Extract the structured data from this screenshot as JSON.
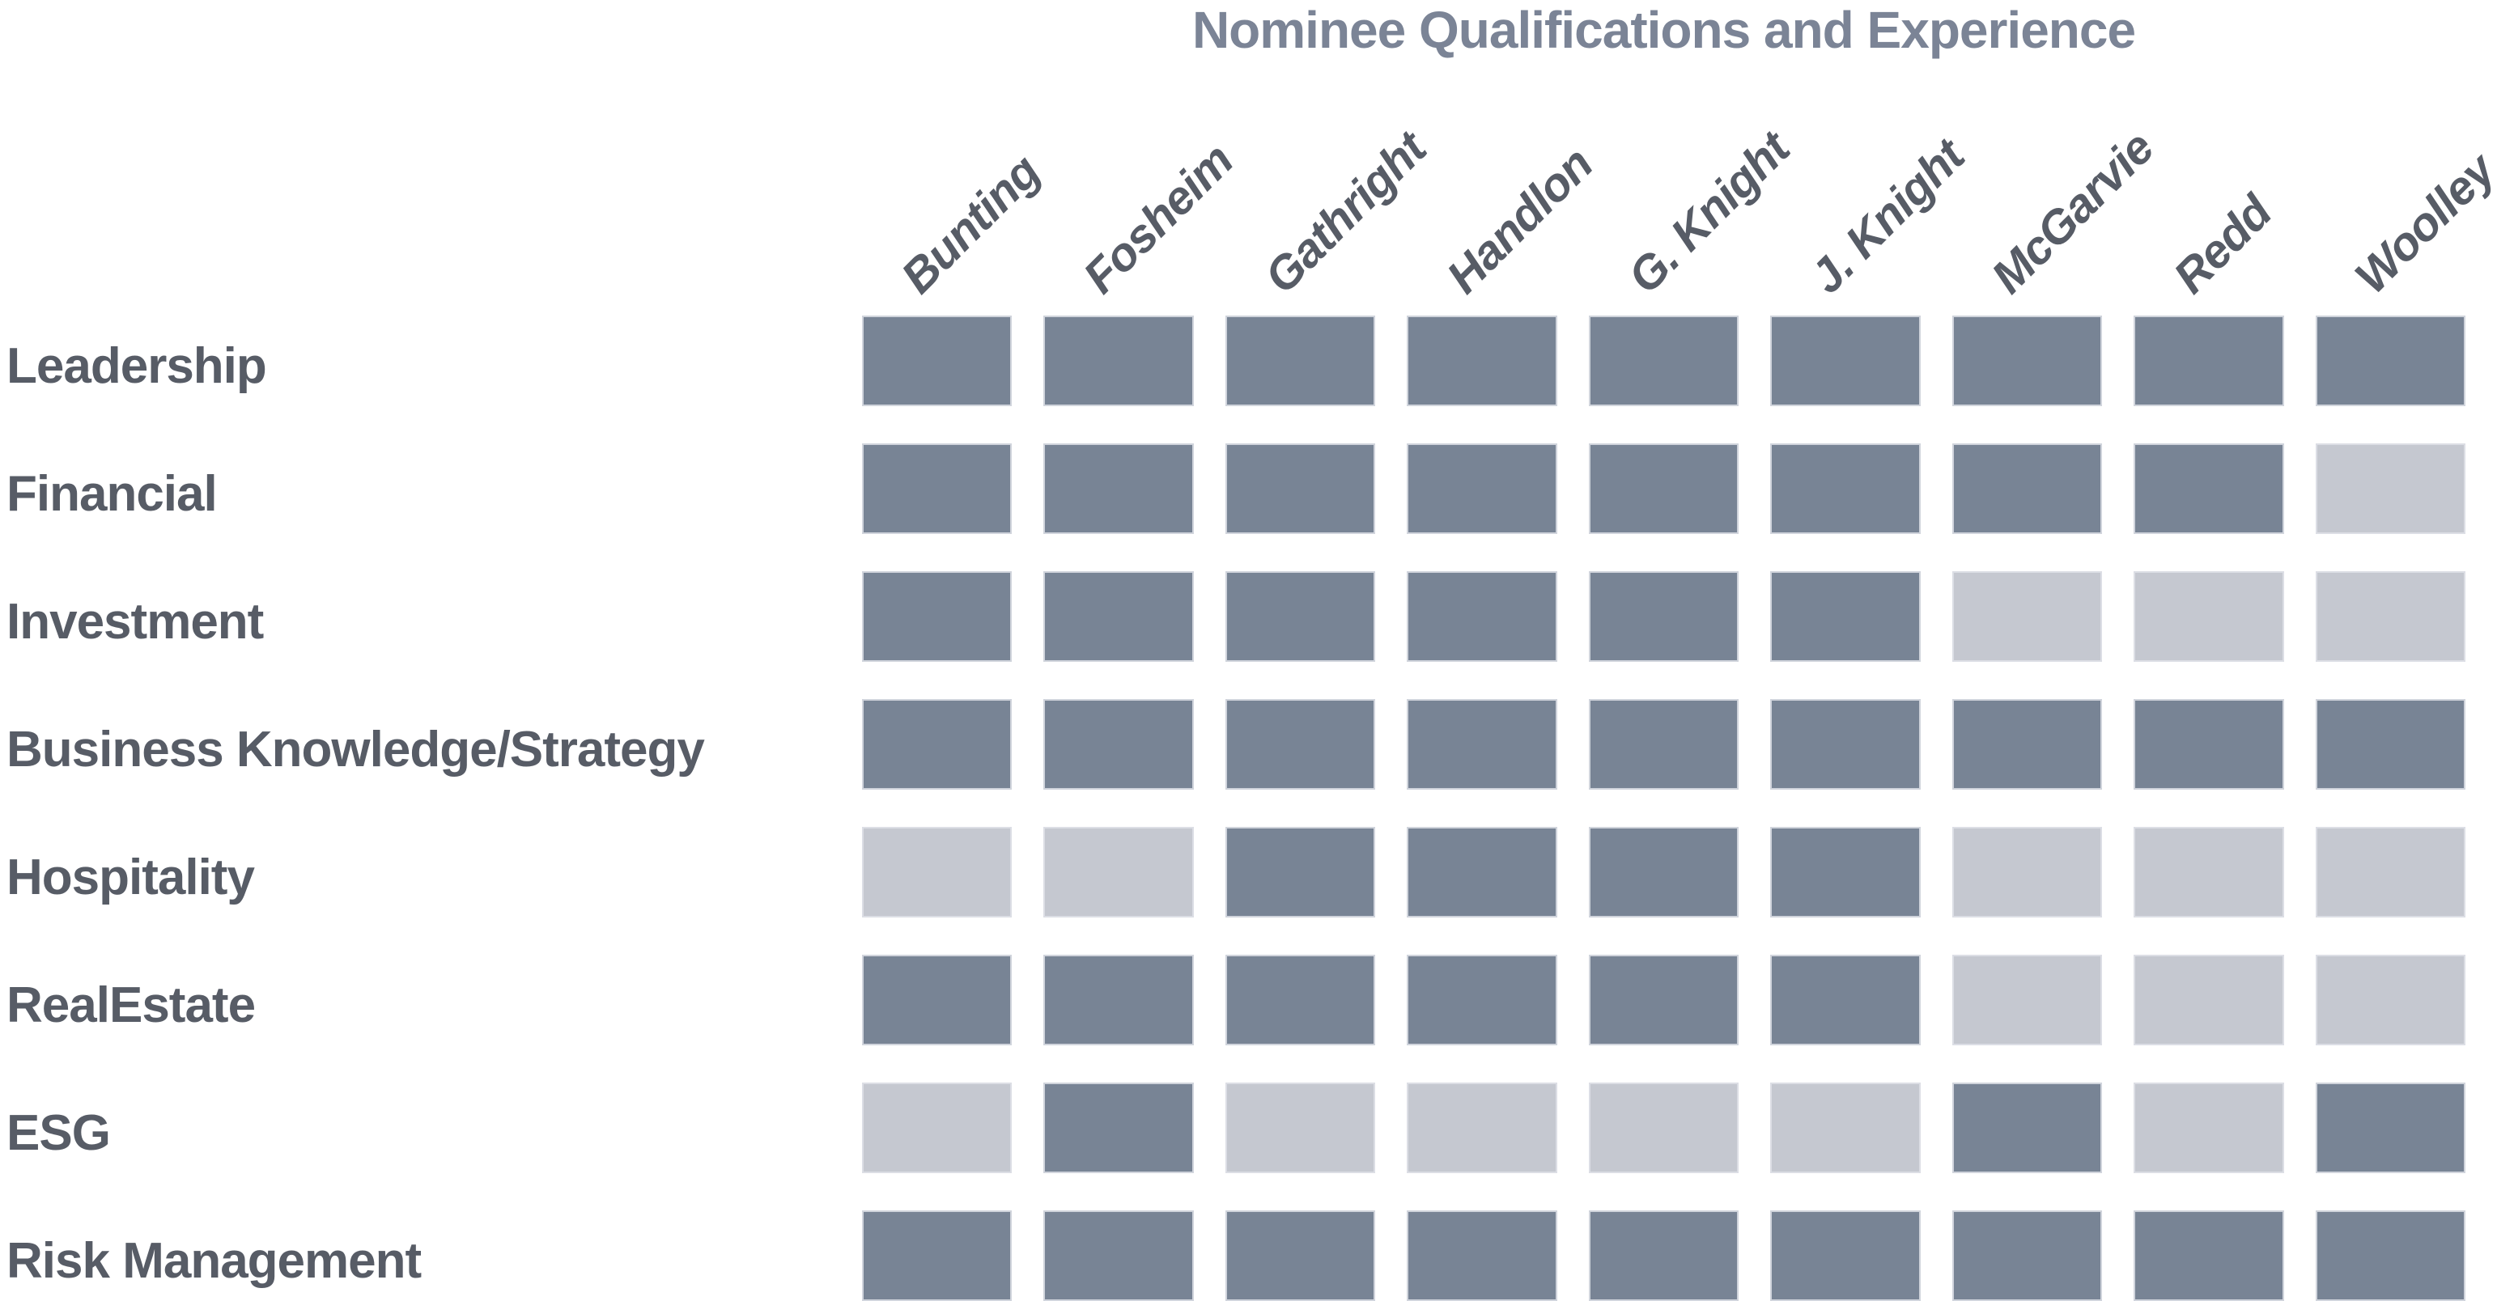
{
  "chart_data": {
    "type": "heatmap",
    "title": "Nominee Qualifications and Experience",
    "columns": [
      "Bunting",
      "Fosheim",
      "Gathright",
      "Handlon",
      "G. Knight",
      "J. Knight",
      "McGarvie",
      "Redd",
      "Woolley"
    ],
    "rows": [
      "Leadership",
      "Financial",
      "Investment",
      "Business Knowledge/Strategy",
      "Hospitality",
      "RealEstate",
      "ESG",
      "Risk Management"
    ],
    "matrix": [
      [
        1,
        1,
        1,
        1,
        1,
        1,
        1,
        1,
        1
      ],
      [
        1,
        1,
        1,
        1,
        1,
        1,
        1,
        1,
        0
      ],
      [
        1,
        1,
        1,
        1,
        1,
        1,
        0,
        0,
        0
      ],
      [
        1,
        1,
        1,
        1,
        1,
        1,
        1,
        1,
        1
      ],
      [
        0,
        0,
        1,
        1,
        1,
        1,
        0,
        0,
        0
      ],
      [
        1,
        1,
        1,
        1,
        1,
        1,
        0,
        0,
        0
      ],
      [
        0,
        1,
        0,
        0,
        0,
        0,
        1,
        0,
        1
      ],
      [
        1,
        1,
        1,
        1,
        1,
        1,
        1,
        1,
        1
      ]
    ],
    "value_meaning": {
      "1": "has qualification/experience (dark cell)",
      "0": "lacks qualification/experience (light cell)"
    },
    "colors": {
      "filled": "#788495",
      "unfilled": "#c5c8d0"
    },
    "layout": {
      "column_header_rotation_deg": 45,
      "grid_lines": "off",
      "legend": "none",
      "row_labels_position": "left",
      "column_headers_position": "top"
    }
  },
  "styles": {
    "title_color": "#7b8496",
    "label_color": "#575c66",
    "background_color": "#ffffff"
  }
}
